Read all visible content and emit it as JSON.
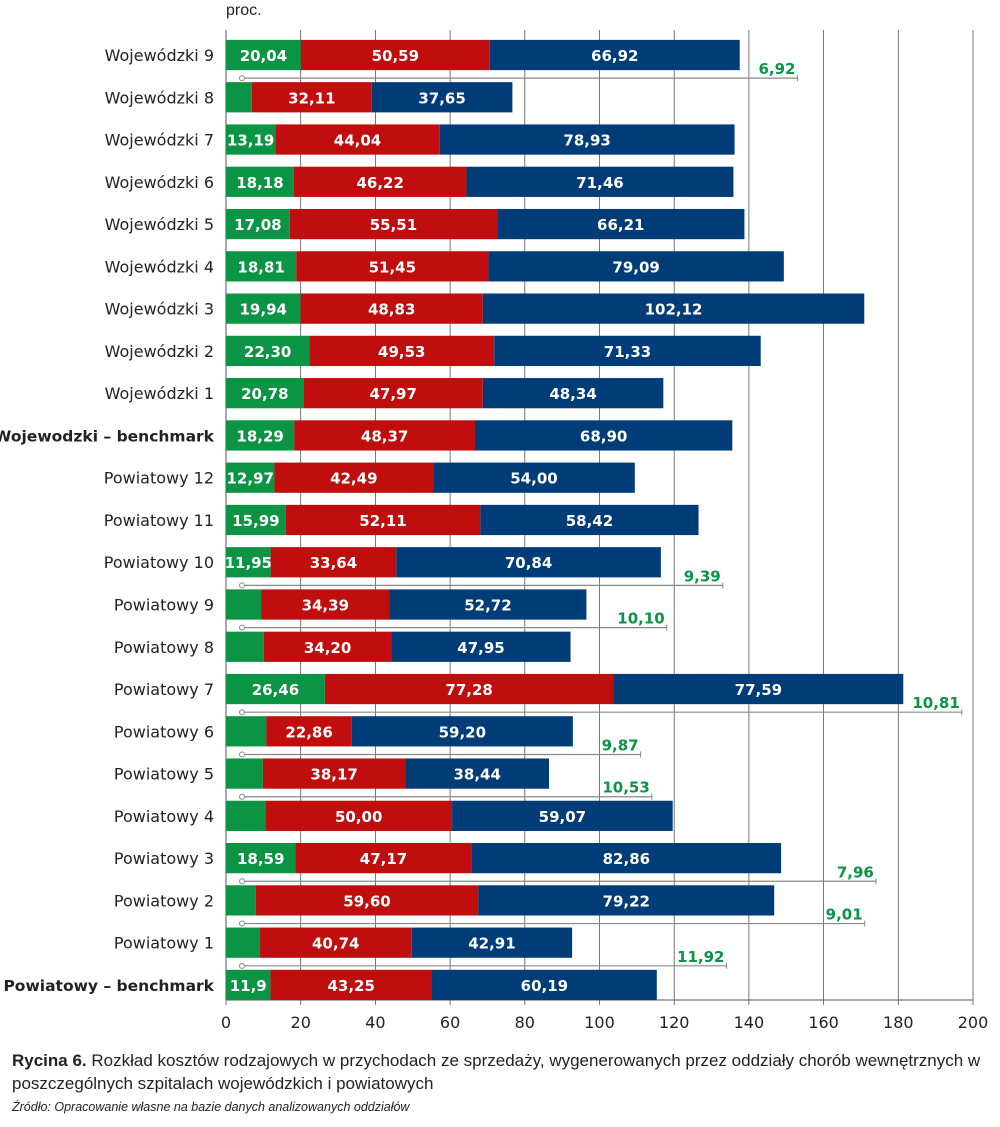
{
  "figure": {
    "caption_label": "Rycina 6.",
    "caption_text": " Rozkład kosztów rodzajowych w przychodach ze sprzedaży, wygenerowanych przez oddziały chorób wewnętrznych w poszczególnych szpitalach wojewódzkich i powiatowych",
    "source": "Źródło: Opracowanie własne na bazie danych analizowanych oddziałów"
  },
  "chart_data": {
    "type": "bar",
    "orientation": "horizontal",
    "stacked": true,
    "title": "Rozkład kosztów rodzajowych w przychodach ze sprzedaży",
    "xlabel": "",
    "unit_label": "proc.",
    "xlim": [
      0,
      200
    ],
    "xticks": [
      "0",
      "20",
      "40",
      "60",
      "80",
      "100",
      "120",
      "140",
      "160",
      "180",
      "200"
    ],
    "grid": true,
    "legend": "none",
    "colors": [
      "#0a9444",
      "#c00d0d",
      "#003d78"
    ],
    "categories": [
      {
        "label": "Wojewódzki 9",
        "bold": false
      },
      {
        "label": "Wojewódzki 8",
        "bold": false
      },
      {
        "label": "Wojewódzki 7",
        "bold": false
      },
      {
        "label": "Wojewódzki 6",
        "bold": false
      },
      {
        "label": "Wojewódzki 5",
        "bold": false
      },
      {
        "label": "Wojewódzki 4",
        "bold": false
      },
      {
        "label": "Wojewódzki 3",
        "bold": false
      },
      {
        "label": "Wojewódzki 2",
        "bold": false
      },
      {
        "label": "Wojewódzki 1",
        "bold": false
      },
      {
        "label": "Wojewodzki – benchmark",
        "bold": true
      },
      {
        "label": "Powiatowy 12",
        "bold": false
      },
      {
        "label": "Powiatowy 11",
        "bold": false
      },
      {
        "label": "Powiatowy 10",
        "bold": false
      },
      {
        "label": "Powiatowy 9",
        "bold": false
      },
      {
        "label": "Powiatowy 8",
        "bold": false
      },
      {
        "label": "Powiatowy 7",
        "bold": false
      },
      {
        "label": "Powiatowy 6",
        "bold": false
      },
      {
        "label": "Powiatowy 5",
        "bold": false
      },
      {
        "label": "Powiatowy 4",
        "bold": false
      },
      {
        "label": "Powiatowy 3",
        "bold": false
      },
      {
        "label": "Powiatowy 2",
        "bold": false
      },
      {
        "label": "Powiatowy 1",
        "bold": false
      },
      {
        "label": "Powiatowy – benchmark",
        "bold": true
      }
    ],
    "series": [
      {
        "name": "green",
        "values": [
          20.04,
          6.92,
          13.19,
          18.18,
          17.08,
          18.81,
          19.94,
          22.3,
          20.78,
          18.29,
          12.97,
          15.99,
          11.95,
          9.39,
          10.1,
          26.46,
          10.81,
          9.87,
          10.53,
          18.59,
          7.96,
          9.01,
          11.9
        ],
        "labels": [
          "20,04",
          "6,92",
          "13,19",
          "18,18",
          "17,08",
          "18,81",
          "19,94",
          "22,30",
          "20,78",
          "18,29",
          "12,97",
          "15,99",
          "11,95",
          "9,39",
          "10,10",
          "26,46",
          "10,81",
          "9,87",
          "10,53",
          "18,59",
          "7,96",
          "9,01",
          "11,9"
        ],
        "callout": [
          false,
          true,
          false,
          false,
          false,
          false,
          false,
          false,
          false,
          false,
          false,
          false,
          false,
          true,
          true,
          false,
          true,
          true,
          true,
          false,
          true,
          true,
          false
        ],
        "callout_end": [
          null,
          153,
          null,
          null,
          null,
          null,
          null,
          null,
          null,
          null,
          null,
          null,
          null,
          133,
          118,
          null,
          197,
          111,
          114,
          null,
          174,
          171,
          null
        ]
      },
      {
        "name": "red",
        "values": [
          50.59,
          32.11,
          44.04,
          46.22,
          55.51,
          51.45,
          48.83,
          49.53,
          47.97,
          48.37,
          42.49,
          52.11,
          33.64,
          34.39,
          34.2,
          77.28,
          22.86,
          38.17,
          50.0,
          47.17,
          59.6,
          40.74,
          43.25
        ],
        "labels": [
          "50,59",
          "32,11",
          "44,04",
          "46,22",
          "55,51",
          "51,45",
          "48,83",
          "49,53",
          "47,97",
          "48,37",
          "42,49",
          "52,11",
          "33,64",
          "34,39",
          "34,20",
          "77,28",
          "22,86",
          "38,17",
          "50,00",
          "47,17",
          "59,60",
          "40,74",
          "43,25"
        ]
      },
      {
        "name": "blue",
        "values": [
          66.92,
          37.65,
          78.93,
          71.46,
          66.21,
          79.09,
          102.12,
          71.33,
          48.34,
          68.9,
          54.0,
          58.42,
          70.84,
          52.72,
          47.95,
          77.59,
          59.2,
          38.44,
          59.07,
          82.86,
          79.22,
          42.91,
          60.19
        ],
        "labels": [
          "66,92",
          "37,65",
          "78,93",
          "71,46",
          "66,21",
          "79,09",
          "102,12",
          "71,33",
          "48,34",
          "68,90",
          "54,00",
          "58,42",
          "70,84",
          "52,72",
          "47,95",
          "77,59",
          "59,20",
          "38,44",
          "59,07",
          "82,86",
          "79,22",
          "42,91",
          "60,19"
        ]
      }
    ],
    "extra_callouts": [
      {
        "row_index": 22,
        "label": "11,92",
        "callout_end": 134
      }
    ]
  }
}
